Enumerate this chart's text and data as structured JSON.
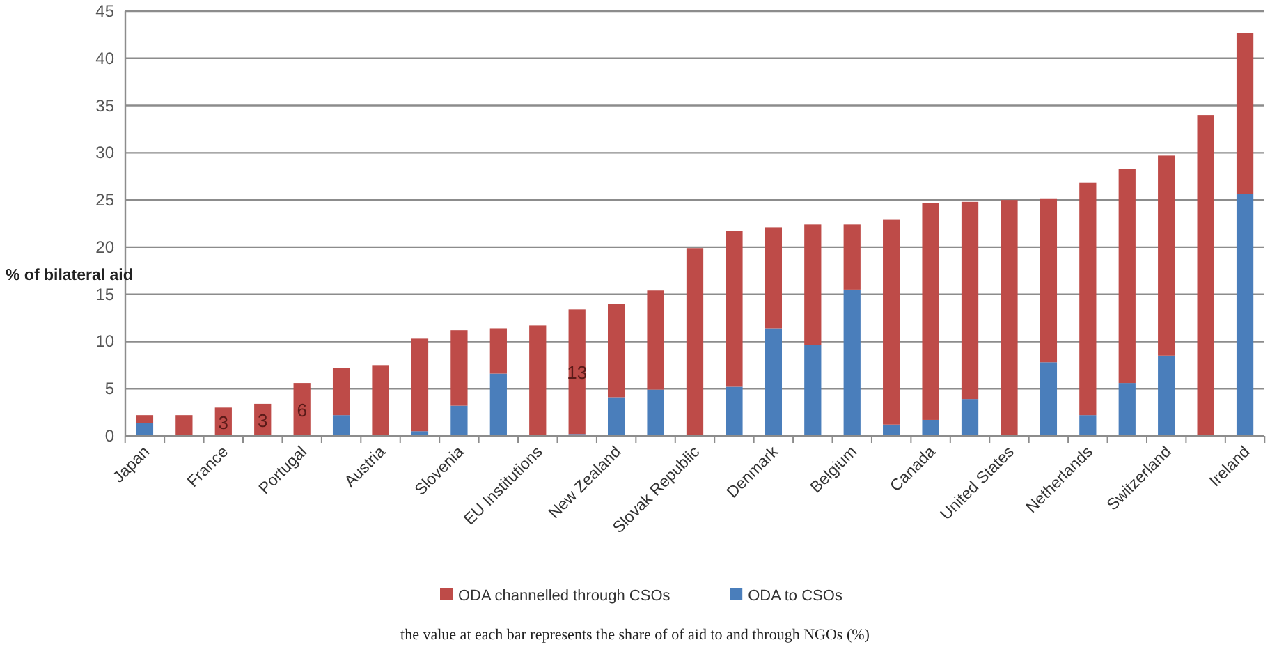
{
  "chart_data": {
    "type": "bar",
    "stacked": true,
    "ylabel": "% of bilateral aid",
    "categories": [
      "Japan",
      null,
      "France",
      null,
      "Portugal",
      null,
      "Austria",
      null,
      "Slovenia",
      null,
      "EU Institutions",
      null,
      "New Zealand",
      null,
      "Slovak Republic",
      null,
      "Denmark",
      null,
      "Belgium",
      null,
      "Canada",
      null,
      "United States",
      null,
      "Netherlands",
      null,
      "Switzerland",
      null,
      "Ireland"
    ],
    "series": [
      {
        "name": "ODA to CSOs",
        "color": "#4a7ebb",
        "values": [
          1.4,
          0,
          0,
          0,
          0,
          2.2,
          0,
          0.5,
          3.2,
          6.6,
          0,
          0.2,
          4.1,
          4.9,
          0,
          5.2,
          11.4,
          9.6,
          15.5,
          1.2,
          1.7,
          3.9,
          0,
          7.8,
          2.2,
          5.6,
          8.5,
          0,
          25.6
        ]
      },
      {
        "name": "ODA channelled through CSOs",
        "color": "#be4b48",
        "values": [
          0.8,
          2.2,
          3.0,
          3.4,
          5.6,
          5.0,
          7.5,
          9.8,
          8.0,
          4.8,
          11.7,
          13.2,
          9.9,
          10.5,
          19.9,
          16.5,
          10.7,
          12.8,
          6.9,
          21.7,
          23.0,
          20.9,
          25.0,
          17.3,
          24.6,
          22.7,
          21.2,
          34.0,
          17.1
        ],
        "value_labels": [
          null,
          null,
          "3",
          "3",
          "6",
          null,
          null,
          null,
          null,
          null,
          null,
          "13",
          null,
          null,
          null,
          null,
          null,
          null,
          null,
          null,
          null,
          null,
          null,
          null,
          null,
          null,
          null,
          null,
          null
        ]
      }
    ],
    "ylim": [
      0,
      45
    ],
    "yticks": [
      0,
      5,
      10,
      15,
      20,
      25,
      30,
      35,
      40,
      45
    ],
    "grid": "y",
    "legend": "bottom",
    "annotations": [
      "the value at each bar represents the share of of aid to and through NGOs (%)"
    ]
  }
}
